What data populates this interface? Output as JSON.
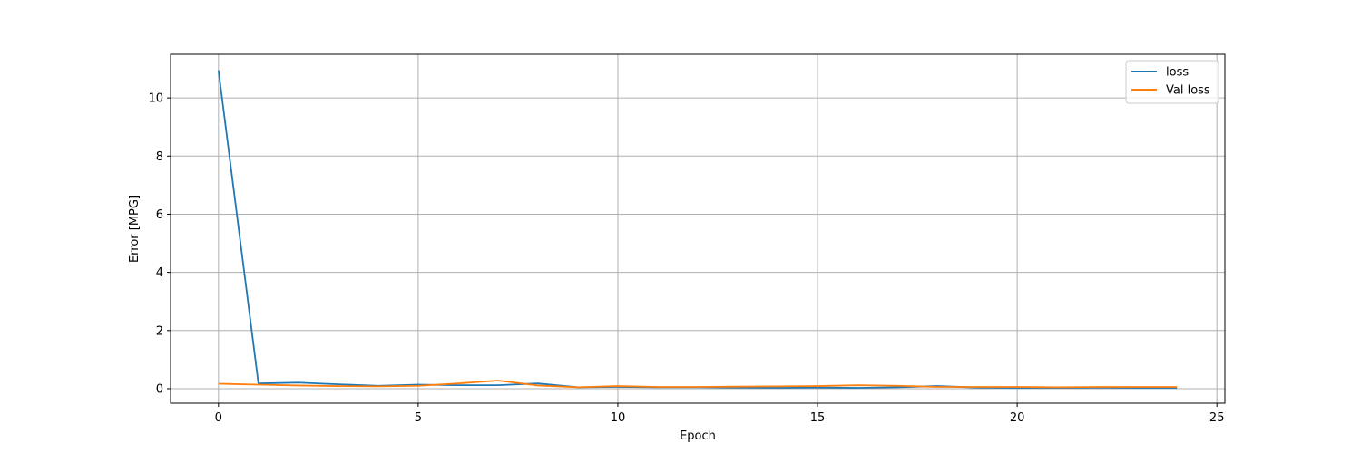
{
  "chart_data": {
    "type": "line",
    "title": "",
    "xlabel": "Epoch",
    "ylabel": "Error [MPG]",
    "xlim": [
      -1.2,
      25.2
    ],
    "ylim": [
      -0.5,
      11.5
    ],
    "xticks": [
      0,
      5,
      10,
      15,
      20,
      25
    ],
    "yticks": [
      0,
      2,
      4,
      6,
      8,
      10
    ],
    "grid": true,
    "legend_position": "top-right",
    "x": [
      0,
      1,
      2,
      3,
      4,
      5,
      6,
      7,
      8,
      9,
      10,
      11,
      12,
      13,
      14,
      15,
      16,
      17,
      18,
      19,
      20,
      21,
      22,
      23,
      24
    ],
    "series": [
      {
        "name": "loss",
        "color": "#1f77b4",
        "values": [
          10.95,
          0.18,
          0.21,
          0.15,
          0.1,
          0.14,
          0.12,
          0.12,
          0.18,
          0.05,
          0.06,
          0.05,
          0.05,
          0.04,
          0.03,
          0.04,
          0.03,
          0.05,
          0.09,
          0.04,
          0.03,
          0.03,
          0.04,
          0.03,
          0.03
        ]
      },
      {
        "name": "Val loss",
        "color": "#ff7f0e",
        "values": [
          0.17,
          0.14,
          0.11,
          0.09,
          0.08,
          0.1,
          0.18,
          0.28,
          0.11,
          0.05,
          0.09,
          0.06,
          0.06,
          0.07,
          0.08,
          0.09,
          0.12,
          0.1,
          0.06,
          0.06,
          0.06,
          0.05,
          0.06,
          0.06,
          0.06
        ]
      }
    ]
  }
}
